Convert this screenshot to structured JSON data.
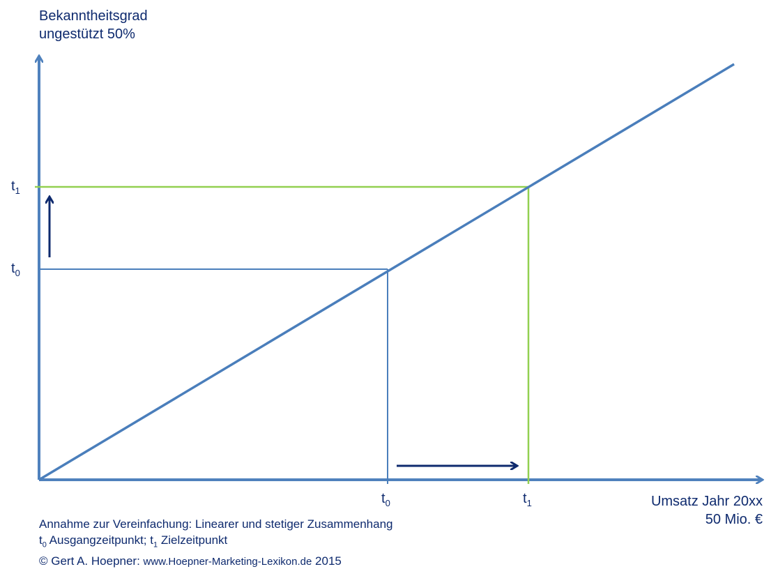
{
  "diagram": {
    "y_axis_title": [
      "Bekanntheitsgrad",
      "ungestützt 50%"
    ],
    "x_axis_title": [
      "Umsatz Jahr 20xx",
      "50 Mio. €"
    ],
    "ticks": {
      "t0": {
        "base": "t",
        "sub": "0"
      },
      "t1": {
        "base": "t",
        "sub": "1"
      }
    },
    "footnotes": {
      "line1": "Annahme zur Vereinfachung: Linearer und stetiger Zusammenhang",
      "line2": {
        "t0_base": "t",
        "t0_sub": "0",
        "t0_text": " Ausgangzeitpunkt; ",
        "t1_base": "t",
        "t1_sub": "1",
        "t1_text": " Zielzeitpunkt"
      },
      "line3": {
        "prefix": "© Gert A. Hoepner: ",
        "website": "www.Hoepner-Marketing-Lexikon.de",
        "suffix": " 2015"
      }
    },
    "colors": {
      "axis": "#4f81bd",
      "line": "#4a7ebb",
      "t0_guide": "#4a7ebb",
      "t1_guide": "#92d050",
      "arrow": "#0e2a6e",
      "text": "#0e2a6e"
    }
  }
}
